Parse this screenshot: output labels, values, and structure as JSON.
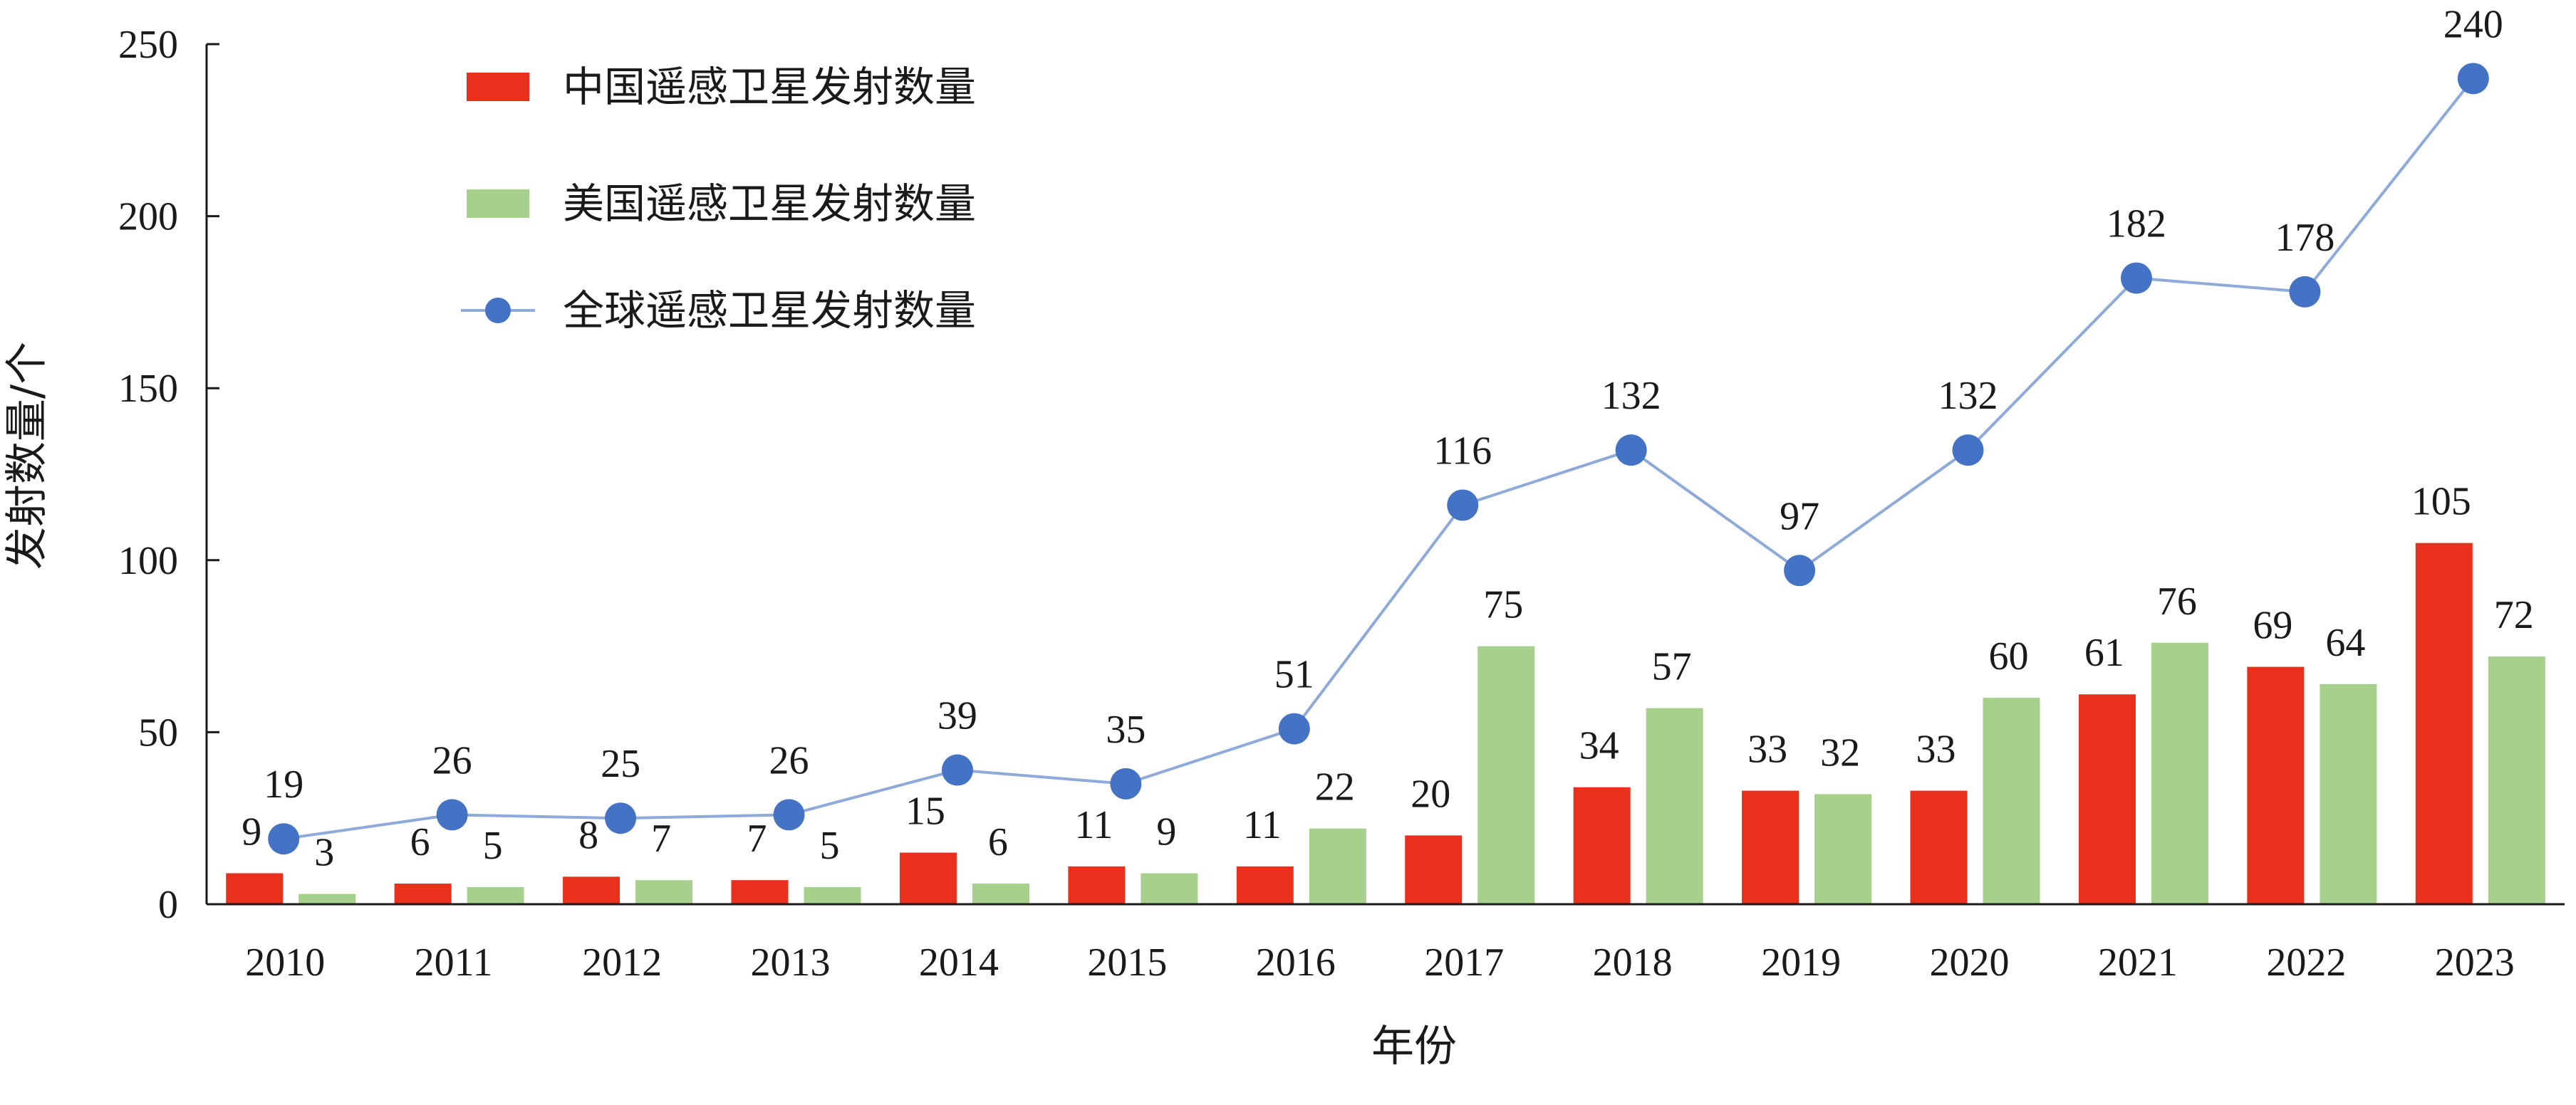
{
  "chart_data": {
    "type": "bar",
    "categories": [
      "2010",
      "2011",
      "2012",
      "2013",
      "2014",
      "2015",
      "2016",
      "2017",
      "2018",
      "2019",
      "2020",
      "2021",
      "2022",
      "2023"
    ],
    "series": [
      {
        "name": "中国遥感卫星发射数量",
        "kind": "bar",
        "color": "#e8301c",
        "values": [
          9,
          6,
          8,
          7,
          15,
          11,
          11,
          20,
          34,
          33,
          33,
          61,
          69,
          105
        ]
      },
      {
        "name": "美国遥感卫星发射数量",
        "kind": "bar",
        "color": "#a8d08d",
        "values": [
          3,
          5,
          7,
          5,
          6,
          9,
          22,
          75,
          57,
          32,
          60,
          76,
          64,
          72
        ]
      },
      {
        "name": "全球遥感卫星发射数量",
        "kind": "line",
        "color": "#4472c4",
        "line_color": "#8eaadb",
        "values": [
          19,
          26,
          25,
          26,
          39,
          35,
          51,
          116,
          132,
          97,
          132,
          182,
          178,
          240
        ]
      }
    ],
    "xlabel": "年份",
    "ylabel": "发射数量/个",
    "ylim": [
      0,
      250
    ],
    "yticks": [
      "0",
      "50",
      "100",
      "150",
      "200",
      "250"
    ],
    "legend_position": "top-left",
    "grid": false
  }
}
